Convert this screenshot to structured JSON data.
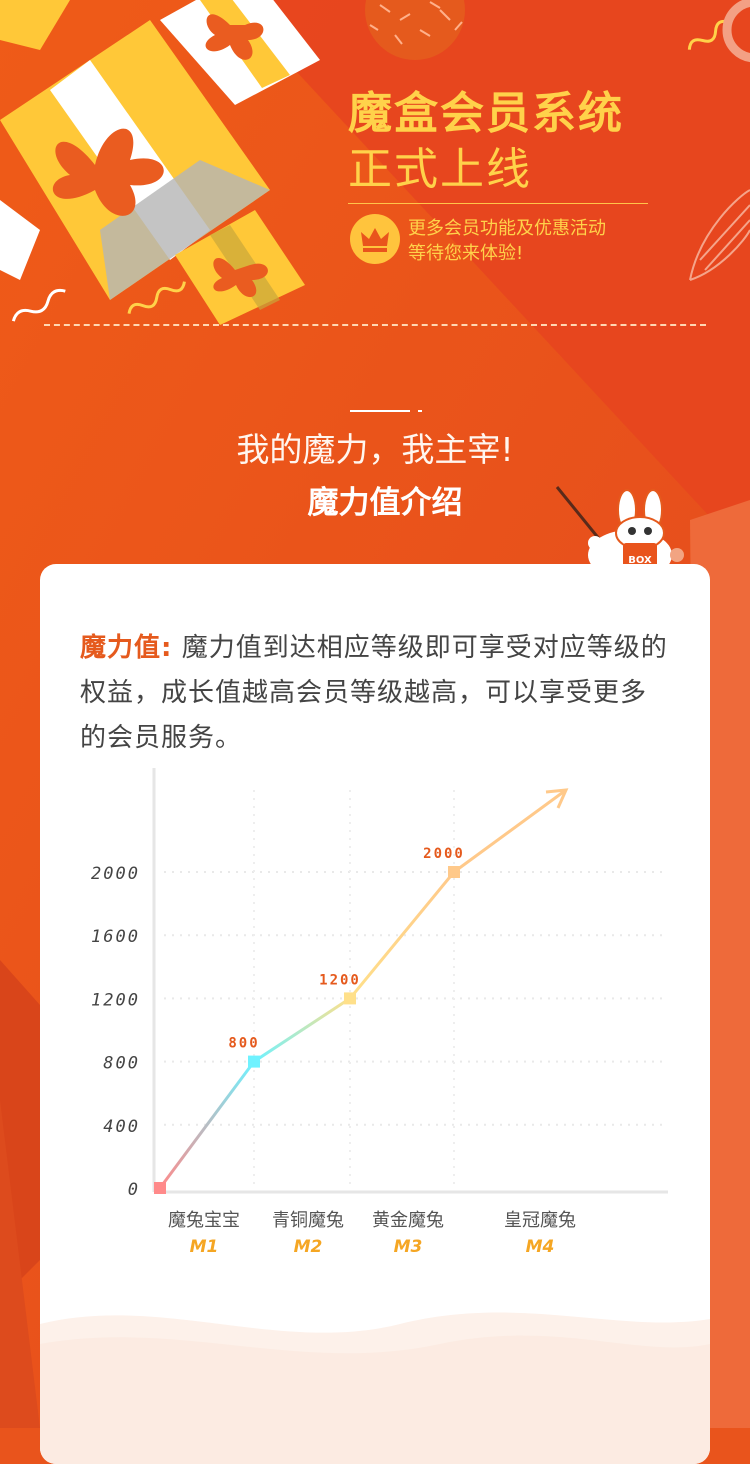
{
  "colors": {
    "background": "#e9541c",
    "accent_yellow": "#ffd24a",
    "highlight": "#e55a1d"
  },
  "hero": {
    "title": "魔盒会员系统",
    "subtitle": "正式上线",
    "note_line1": "更多会员功能及优惠活动",
    "note_line2": "等待您来体验!",
    "crown_icon": "crown-icon"
  },
  "section": {
    "slogan": "我的魔力，我主宰!",
    "title": "魔力值介绍"
  },
  "card": {
    "term": "魔力值",
    "colon": ":",
    "description": "魔力值到达相应等级即可享受对应等级的权益，成长值越高会员等级越高，可以享受更多的会员服务。"
  },
  "chart_data": {
    "type": "line",
    "title": "",
    "xlabel": "",
    "ylabel": "",
    "ylim": [
      0,
      2000
    ],
    "yticks": [
      "0",
      "400",
      "800",
      "1200",
      "1600",
      "2000"
    ],
    "ytick_values": [
      0,
      400,
      800,
      1200,
      1600,
      2000
    ],
    "categories": [
      {
        "name": "魔兔宝宝",
        "level": "M1",
        "value": 800,
        "label": "800",
        "color": "#6ff2ff"
      },
      {
        "name": "青铜魔兔",
        "level": "M2",
        "value": 1200,
        "label": "1200",
        "color": "#ffe08a"
      },
      {
        "name": "黄金魔兔",
        "level": "M3",
        "value": 2000,
        "label": "2000",
        "color": "#ffc98a"
      },
      {
        "name": "皇冠魔兔",
        "level": "M4",
        "value": null,
        "label": "",
        "color": "#ffc06a"
      }
    ],
    "origin": {
      "value": 0,
      "color": "#ff8a8a"
    },
    "grid": true,
    "arrow": true
  }
}
